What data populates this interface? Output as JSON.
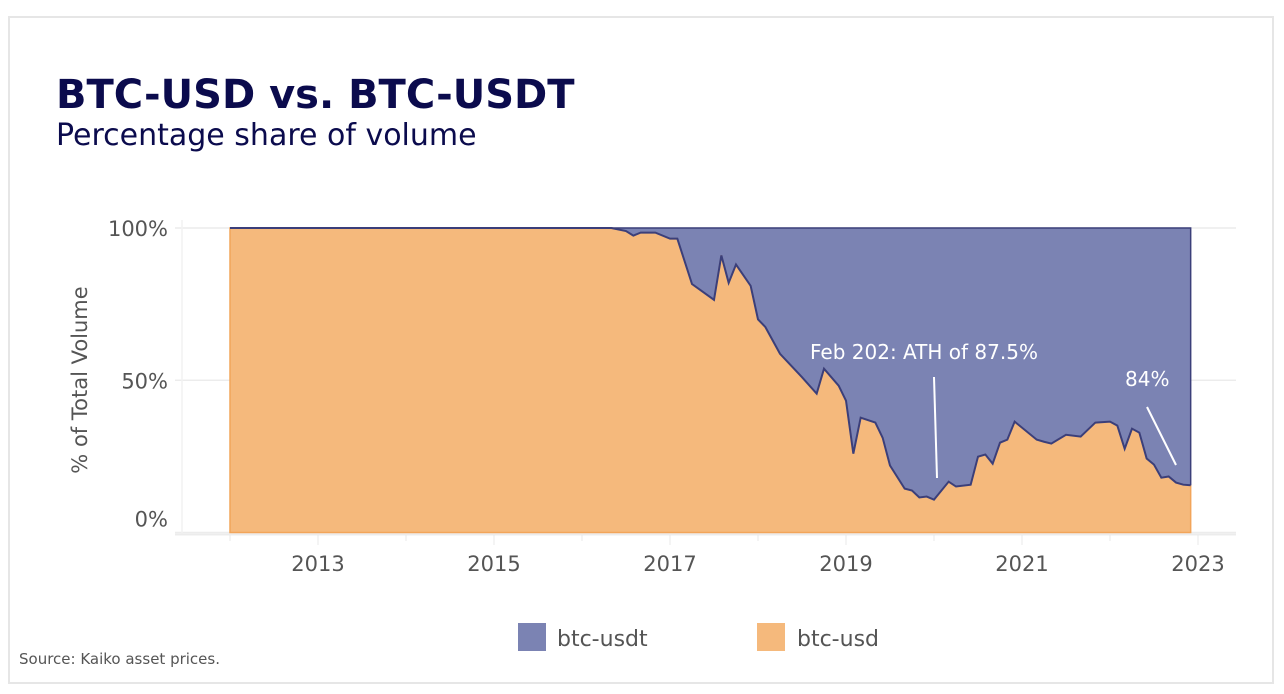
{
  "chart_data": {
    "type": "area",
    "stacked": true,
    "normalized": true,
    "title": "BTC-USD vs. BTC-USDT",
    "subtitle": "Percentage share of volume",
    "ylabel": "% of Total Volume",
    "xlabel": "",
    "ylim": [
      0,
      100
    ],
    "xlim": [
      "2012-01",
      "2022-12"
    ],
    "yticks": [
      "0%",
      "50%",
      "100%"
    ],
    "ytick_values": [
      0,
      50,
      100
    ],
    "xticks": [
      "2013",
      "2015",
      "2017",
      "2019",
      "2021",
      "2023"
    ],
    "grid": true,
    "legend": "bottom",
    "colors": {
      "btc-usdt": "#7b83b3",
      "btc-usd": "#f5b97c",
      "line": "#3b3f7a"
    },
    "x": [
      "2012-01",
      "2016-05",
      "2016-07",
      "2016-08",
      "2016-09",
      "2016-11",
      "2017-01",
      "2017-02",
      "2017-04",
      "2017-07",
      "2017-08",
      "2017-09",
      "2017-10",
      "2017-12",
      "2018-01",
      "2018-02",
      "2018-04",
      "2018-07",
      "2018-09",
      "2018-10",
      "2018-12",
      "2019-01",
      "2019-02",
      "2019-03",
      "2019-05",
      "2019-06",
      "2019-07",
      "2019-09",
      "2019-10",
      "2019-11",
      "2019-12",
      "2020-01",
      "2020-03",
      "2020-04",
      "2020-06",
      "2020-07",
      "2020-08",
      "2020-09",
      "2020-10",
      "2020-11",
      "2020-12",
      "2021-03",
      "2021-04",
      "2021-05",
      "2021-07",
      "2021-09",
      "2021-11",
      "2022-01",
      "2022-02",
      "2022-03",
      "2022-04",
      "2022-05",
      "2022-06",
      "2022-07",
      "2022-08",
      "2022-09",
      "2022-10",
      "2022-11",
      "2022-12"
    ],
    "series": [
      {
        "name": "btc-usd",
        "values": [
          100,
          100,
          99,
          97.5,
          98.5,
          98.5,
          96.5,
          96.5,
          81.6,
          76.4,
          91,
          82,
          88,
          81,
          70,
          67.5,
          58.7,
          51,
          45.6,
          53.8,
          48.2,
          43.3,
          25.9,
          37.7,
          36.1,
          31.1,
          22,
          14.4,
          13.8,
          11.5,
          11.8,
          10.8,
          16.7,
          15.1,
          15.7,
          24.9,
          25.6,
          22.6,
          29.5,
          30.5,
          36.4,
          30.5,
          29.8,
          29.2,
          32.1,
          31.5,
          36.1,
          36.4,
          35.1,
          27.5,
          34.1,
          32.8,
          24.3,
          22.3,
          18,
          18.4,
          16.4,
          15.7,
          15.5
        ]
      },
      {
        "name": "btc-usdt",
        "values": "remainder to 100%"
      }
    ],
    "annotations": [
      {
        "text": "Feb 202: ATH of 87.5%",
        "x": "2020-01",
        "y": 11
      },
      {
        "text": "84%",
        "x": "2022-11",
        "y": 16
      }
    ]
  },
  "footer": {
    "source": "Source: Kaiko asset prices."
  }
}
